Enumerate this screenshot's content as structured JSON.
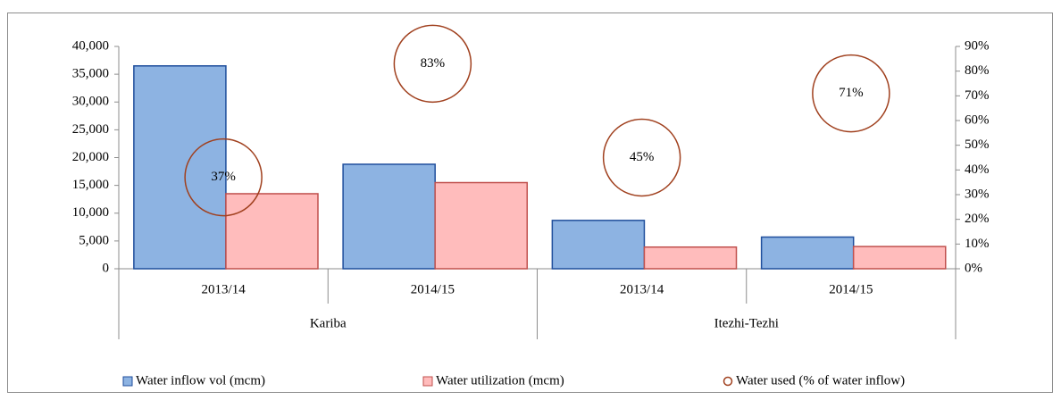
{
  "chart_data": {
    "type": "bar",
    "categories": [
      "2013/14",
      "2014/15",
      "2013/14",
      "2014/15"
    ],
    "category_groups": [
      "Kariba",
      "Kariba",
      "Itezhi-Tezhi",
      "Itezhi-Tezhi"
    ],
    "series": [
      {
        "name": "Water inflow vol (mcm)",
        "color": "#8db3e2",
        "edgecolor": "#1f4e9c",
        "values": [
          36500,
          18800,
          8700,
          5700
        ]
      },
      {
        "name": "Water utilization (mcm)",
        "color": "#ffbcbc",
        "edgecolor": "#c0504d",
        "values": [
          13500,
          15500,
          3900,
          4000
        ]
      },
      {
        "name": "Water used (% of water inflow)",
        "type": "scatter",
        "marker": "circle",
        "color": "#a0401e",
        "axis": "y2",
        "values": [
          37,
          83,
          45,
          71
        ],
        "value_labels": [
          "37%",
          "83%",
          "45%",
          "71%"
        ]
      }
    ],
    "ylim": [
      0,
      40000
    ],
    "yticks": [
      0,
      {
        "value": 5000,
        "label": "5,000"
      },
      {
        "value": 10000,
        "label": "10,000"
      },
      {
        "value": 15000,
        "label": "15,000"
      },
      {
        "value": 20000,
        "label": "20,000"
      },
      {
        "value": 25000,
        "label": "25,000"
      },
      {
        "value": 30000,
        "label": "30,000"
      },
      {
        "value": 35000,
        "label": "35,000"
      },
      {
        "value": 40000,
        "label": "40,000"
      }
    ],
    "y2lim": [
      0,
      90
    ],
    "y2ticks": [
      {
        "value": 0,
        "label": "0%"
      },
      {
        "value": 10,
        "label": "10%"
      },
      {
        "value": 20,
        "label": "20%"
      },
      {
        "value": 30,
        "label": "30%"
      },
      {
        "value": 40,
        "label": "40%"
      },
      {
        "value": 50,
        "label": "50%"
      },
      {
        "value": 60,
        "label": "60%"
      },
      {
        "value": 70,
        "label": "70%"
      },
      {
        "value": 80,
        "label": "80%"
      },
      {
        "value": 90,
        "label": "90%"
      }
    ],
    "grid": false,
    "legend": "bottom"
  }
}
